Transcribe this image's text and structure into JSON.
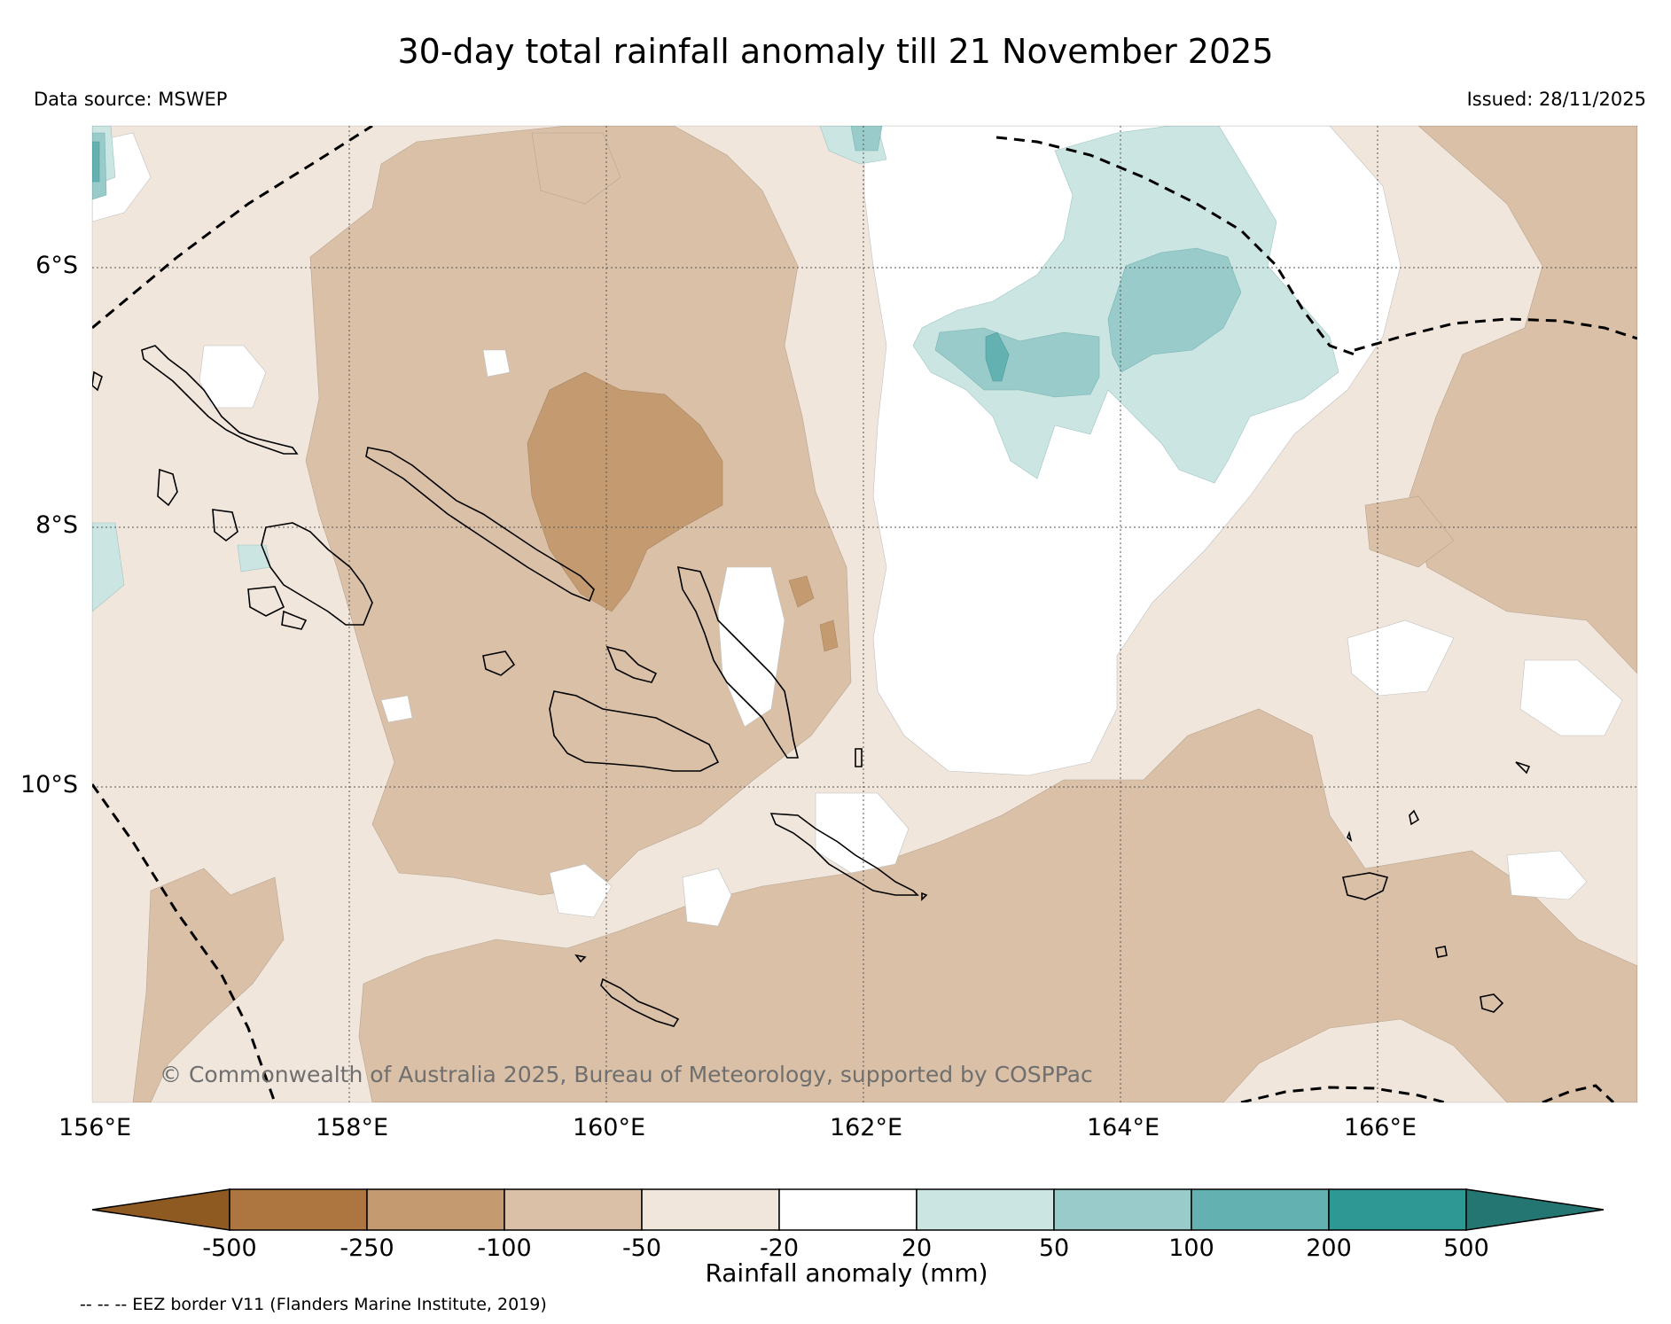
{
  "title": "30-day total rainfall anomaly till 21 November 2025",
  "data_source": "Data source: MSWEP",
  "issued": "Issued: 28/11/2025",
  "copyright": "© Commonwealth of Australia 2025, Bureau of Meteorology, supported by COSPPac",
  "latitude_labels": [
    "6°S",
    "8°S",
    "10°S"
  ],
  "longitude_labels": [
    "156°E",
    "158°E",
    "160°E",
    "162°E",
    "164°E",
    "166°E"
  ],
  "colorbar": {
    "title": "Rainfall anomaly (mm)",
    "ticks": [
      "-500",
      "-250",
      "-100",
      "-50",
      "-20",
      "20",
      "50",
      "100",
      "200",
      "500"
    ],
    "colors": [
      "#8f5a22",
      "#ad7640",
      "#c49a70",
      "#d9c0a6",
      "#f0e6dc",
      "#ffffff",
      "#cbe5e3",
      "#98cbc9",
      "#64b1b1",
      "#2e9894",
      "#237672"
    ]
  },
  "eez_note": "-- -- -- EEZ border V11 (Flanders Marine Institute, 2019)"
}
